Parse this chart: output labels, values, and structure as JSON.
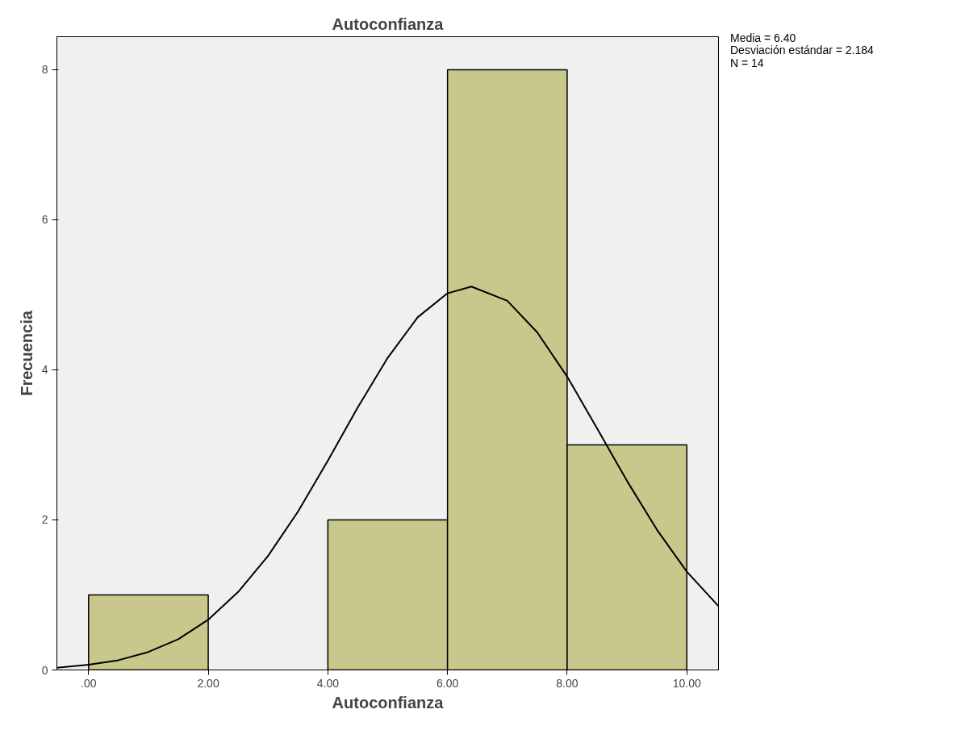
{
  "chart_data": {
    "type": "histogram",
    "title": "Autoconfianza",
    "xlabel": "Autoconfianza",
    "ylabel": "Frecuencia",
    "series": [
      {
        "bins": [
          0,
          2,
          4,
          6,
          8,
          10
        ],
        "values": [
          1,
          0,
          2,
          8,
          3
        ],
        "color": "#c8c88c"
      },
      {
        "type": "line",
        "color": "#000000",
        "x": [
          -0.53,
          0,
          0.5,
          1,
          1.5,
          2,
          2.5,
          3,
          3.5,
          4,
          4.5,
          5,
          5.5,
          6,
          6.4,
          7,
          7.5,
          8,
          8.5,
          9,
          9.5,
          10,
          10.53
        ],
        "values": [
          0.03,
          0.07,
          0.13,
          0.24,
          0.41,
          0.67,
          1.04,
          1.52,
          2.11,
          2.79,
          3.5,
          4.16,
          4.7,
          5.02,
          5.11,
          4.92,
          4.5,
          3.91,
          3.22,
          2.52,
          1.87,
          1.31,
          0.85
        ]
      }
    ],
    "xlim": [
      -0.53,
      10.53
    ],
    "ylim": [
      0,
      8.44
    ],
    "xticks": [
      {
        "value": 0,
        "label": ".00"
      },
      {
        "value": 2,
        "label": "2.00"
      },
      {
        "value": 4,
        "label": "4.00"
      },
      {
        "value": 6,
        "label": "6.00"
      },
      {
        "value": 8,
        "label": "8.00"
      },
      {
        "value": 10,
        "label": "10.00"
      }
    ],
    "yticks": [
      0,
      2,
      4,
      6,
      8
    ],
    "grid": false,
    "annotations": [
      "Media = 6.40",
      "Desviación estándar = 2.184",
      "N = 14"
    ]
  }
}
